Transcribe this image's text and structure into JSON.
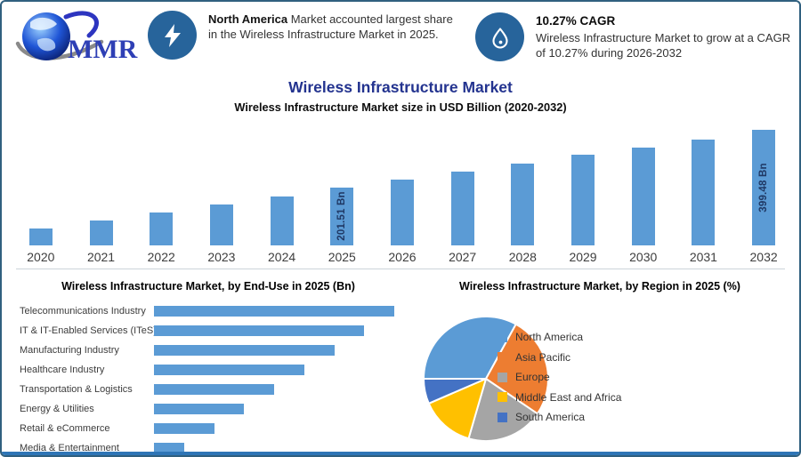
{
  "header": {
    "logo_text": "MMR",
    "callout1": {
      "icon": "lightning-icon",
      "bold": "North America",
      "text": " Market accounted largest share in the Wireless Infrastructure Market in 2025."
    },
    "callout2": {
      "icon": "growth-drop-icon",
      "heading": "10.27% CAGR",
      "body": "Wireless Infrastructure Market to grow at a CAGR of 10.27% during 2026-2032"
    }
  },
  "title": "Wireless Infrastructure Market",
  "subtitle": "Wireless Infrastructure Market size in USD Billion (2020-2032)",
  "colors": {
    "bar_blue": "#5b9bd5",
    "bar_value_label": "#1f3864",
    "title_blue": "#23338f",
    "icon_circle": "#27649b",
    "page_border": "#30607f",
    "bottom_bar": "#2e75b6"
  },
  "chart_data": [
    {
      "type": "bar",
      "title": "Wireless Infrastructure Market size in USD Billion (2020-2032)",
      "categories": [
        "2020",
        "2021",
        "2022",
        "2023",
        "2024",
        "2025",
        "2026",
        "2027",
        "2028",
        "2029",
        "2030",
        "2031",
        "2032"
      ],
      "values": [
        57.5,
        85,
        115,
        142.5,
        170,
        201.51,
        227.5,
        255,
        282.5,
        312.5,
        340,
        367.5,
        399.48
      ],
      "value_labels": {
        "2025": "201.51 Bn",
        "2032": "399.48 Bn"
      },
      "xlabel": "",
      "ylabel": "USD Billion",
      "ylim": [
        0,
        400
      ],
      "grid": false,
      "bar_color": "#5b9bd5"
    },
    {
      "type": "bar",
      "orientation": "horizontal",
      "title": "Wireless Infrastructure Market, by End-Use in 2025 (Bn)",
      "categories": [
        "Telecommunications Industry",
        "IT & IT-Enabled Services (ITeS)",
        "Manufacturing Industry",
        "Healthcare Industry",
        "Transportation & Logistics",
        "Energy & Utilities",
        "Retail & eCommerce",
        "Media & Entertainment"
      ],
      "values": [
        100,
        87.5,
        75,
        62.5,
        50,
        37.5,
        25,
        12.5
      ],
      "xlim": [
        0,
        100
      ],
      "grid": false,
      "bar_color": "#5b9bd5"
    },
    {
      "type": "pie",
      "title": "Wireless Infrastructure Market, by Region in 2025 (%)",
      "labels": [
        "North America",
        "Asia Pacific",
        "Europe",
        "Middle East and Africa",
        "South America"
      ],
      "values": [
        33,
        26.5,
        20,
        14,
        6.5
      ],
      "colors": [
        "#5b9bd5",
        "#ed7d31",
        "#a5a5a5",
        "#ffc000",
        "#4472c4"
      ],
      "start_angle_deg": 270,
      "legend_position": "right"
    }
  ]
}
